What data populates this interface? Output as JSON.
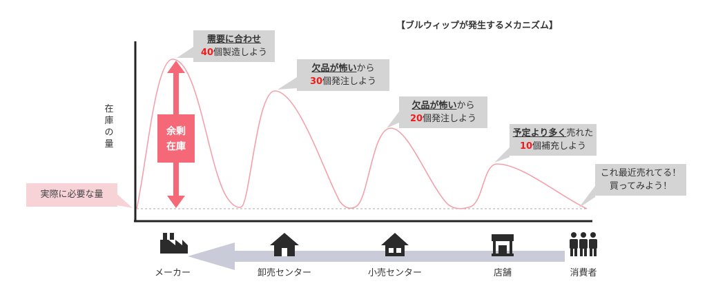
{
  "title": "【ブルウィップが発生するメカニズム】",
  "y_axis_label": "在庫の量",
  "need_label": "実際に必要な量",
  "surplus_label": [
    "余剰",
    "在庫"
  ],
  "callouts": {
    "maker": {
      "line1": "需要に合わせ",
      "qty": "40",
      "line2": "個製造しよう"
    },
    "wholesale": {
      "line1_u": "欠品が怖い",
      "line1_rest": "から",
      "qty": "30",
      "line2": "個発注しよう"
    },
    "retail": {
      "line1_u": "欠品が怖い",
      "line1_rest": "から",
      "qty": "20",
      "line2": "個発注しよう"
    },
    "store": {
      "line1_u": "予定より多く",
      "line1_rest": "売れた",
      "qty": "10",
      "line2": "個補充しよう"
    },
    "consumer": {
      "line1": "これ最近売れてる！",
      "line2": "買ってみよう！"
    }
  },
  "actors": [
    {
      "label": "メーカー",
      "icon": "factory-icon"
    },
    {
      "label": "卸売センター",
      "icon": "house-icon"
    },
    {
      "label": "小売センター",
      "icon": "house-icon"
    },
    {
      "label": "店舗",
      "icon": "store-icon"
    },
    {
      "label": "消費者",
      "icon": "people-icon"
    }
  ],
  "colors": {
    "curve": "#f4a0aa",
    "accent": "#f56878",
    "callout_bg": "#d4d4d4",
    "need_bg": "#f7d3d8",
    "qty_red": "#ee1c1c",
    "flow_arrow": "#c9ccd8"
  }
}
